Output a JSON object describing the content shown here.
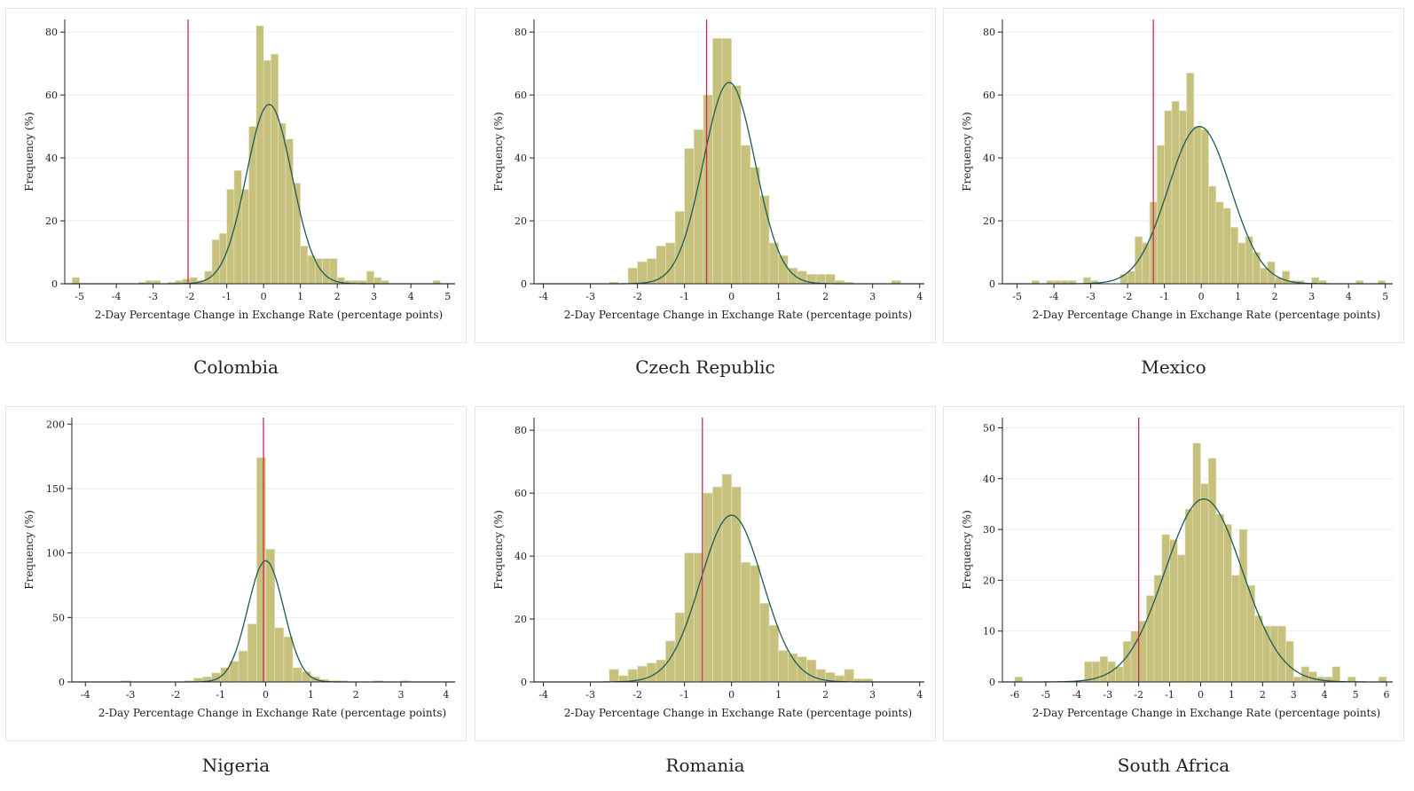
{
  "chart_data": [
    {
      "type": "bar",
      "title": "Colombia",
      "xlabel": "2-Day Percentage Change in Exchange Rate (percentage points)",
      "ylabel": "Frequency (%)",
      "xlim": [
        -5.4,
        5.2
      ],
      "ylim": [
        0,
        84
      ],
      "xticks": [
        -5,
        -4,
        -3,
        -2,
        -1,
        0,
        1,
        2,
        3,
        4,
        5
      ],
      "yticks": [
        0,
        20,
        40,
        60,
        80
      ],
      "grid": true,
      "bin_width": 0.2,
      "bins": [
        [
          -5.1,
          2
        ],
        [
          -3.3,
          0.5
        ],
        [
          -3.1,
          1
        ],
        [
          -2.9,
          1
        ],
        [
          -2.5,
          0.5
        ],
        [
          -2.3,
          1
        ],
        [
          -2.1,
          1.5
        ],
        [
          -1.9,
          2
        ],
        [
          -1.7,
          1
        ],
        [
          -1.5,
          4
        ],
        [
          -1.3,
          14
        ],
        [
          -1.1,
          16
        ],
        [
          -0.9,
          30
        ],
        [
          -0.7,
          36
        ],
        [
          -0.5,
          30
        ],
        [
          -0.3,
          50
        ],
        [
          -0.1,
          82
        ],
        [
          0.1,
          71
        ],
        [
          0.3,
          73
        ],
        [
          0.5,
          51
        ],
        [
          0.7,
          46
        ],
        [
          0.9,
          32
        ],
        [
          1.1,
          12
        ],
        [
          1.3,
          9
        ],
        [
          1.5,
          8
        ],
        [
          1.7,
          8
        ],
        [
          1.9,
          8
        ],
        [
          2.1,
          2
        ],
        [
          2.3,
          1
        ],
        [
          2.5,
          1
        ],
        [
          2.7,
          1
        ],
        [
          2.9,
          4
        ],
        [
          3.1,
          2
        ],
        [
          3.3,
          1
        ],
        [
          4.7,
          1
        ]
      ],
      "normal_curve": {
        "mean": 0.15,
        "peak": 57,
        "sd": 0.62
      },
      "vline_x": -2.05,
      "colors": {
        "bar": "#c6c17c",
        "curve": "#1f5a5a",
        "vline": "#d42a52"
      }
    },
    {
      "type": "bar",
      "title": "Czech Republic",
      "xlabel": "2-Day Percentage Change in Exchange Rate (percentage points)",
      "ylabel": "Frequency (%)",
      "xlim": [
        -4.2,
        4.1
      ],
      "ylim": [
        0,
        84
      ],
      "xticks": [
        -4,
        -3,
        -2,
        -1,
        0,
        1,
        2,
        3,
        4
      ],
      "yticks": [
        0,
        20,
        40,
        60,
        80
      ],
      "grid": true,
      "bin_width": 0.2,
      "bins": [
        [
          -2.5,
          0.5
        ],
        [
          -2.1,
          5
        ],
        [
          -1.9,
          7
        ],
        [
          -1.7,
          8
        ],
        [
          -1.5,
          12
        ],
        [
          -1.3,
          13
        ],
        [
          -1.1,
          23
        ],
        [
          -0.9,
          43
        ],
        [
          -0.7,
          49
        ],
        [
          -0.5,
          60
        ],
        [
          -0.3,
          78
        ],
        [
          -0.1,
          78
        ],
        [
          0.1,
          63
        ],
        [
          0.3,
          44
        ],
        [
          0.5,
          37
        ],
        [
          0.7,
          28
        ],
        [
          0.9,
          13
        ],
        [
          1.1,
          9
        ],
        [
          1.3,
          5
        ],
        [
          1.5,
          4
        ],
        [
          1.7,
          3
        ],
        [
          1.9,
          3
        ],
        [
          2.1,
          3
        ],
        [
          2.3,
          1
        ],
        [
          2.5,
          0.5
        ],
        [
          3.5,
          1
        ]
      ],
      "normal_curve": {
        "mean": -0.05,
        "peak": 64,
        "sd": 0.55
      },
      "vline_x": -0.53,
      "colors": {
        "bar": "#c6c17c",
        "curve": "#1f5a5a",
        "vline": "#d42a52"
      }
    },
    {
      "type": "bar",
      "title": "Mexico",
      "xlabel": "2-Day Percentage Change in Exchange Rate (percentage points)",
      "ylabel": "Frequency (%)",
      "xlim": [
        -5.4,
        5.2
      ],
      "ylim": [
        0,
        84
      ],
      "xticks": [
        -5,
        -4,
        -3,
        -2,
        -1,
        0,
        1,
        2,
        3,
        4,
        5
      ],
      "yticks": [
        0,
        20,
        40,
        60,
        80
      ],
      "grid": true,
      "bin_width": 0.2,
      "bins": [
        [
          -4.5,
          1
        ],
        [
          -4.1,
          1
        ],
        [
          -3.9,
          1
        ],
        [
          -3.7,
          1
        ],
        [
          -3.5,
          1
        ],
        [
          -3.1,
          2
        ],
        [
          -2.9,
          1
        ],
        [
          -2.1,
          3
        ],
        [
          -1.9,
          4
        ],
        [
          -1.7,
          15
        ],
        [
          -1.5,
          13
        ],
        [
          -1.3,
          26
        ],
        [
          -1.1,
          44
        ],
        [
          -0.9,
          55
        ],
        [
          -0.7,
          58
        ],
        [
          -0.5,
          55
        ],
        [
          -0.3,
          67
        ],
        [
          -0.1,
          50
        ],
        [
          0.1,
          49
        ],
        [
          0.3,
          31
        ],
        [
          0.5,
          26
        ],
        [
          0.7,
          24
        ],
        [
          0.9,
          18
        ],
        [
          1.1,
          13
        ],
        [
          1.3,
          15
        ],
        [
          1.5,
          10
        ],
        [
          1.7,
          5
        ],
        [
          1.9,
          7
        ],
        [
          2.1,
          2
        ],
        [
          2.3,
          4
        ],
        [
          2.5,
          1
        ],
        [
          2.7,
          1
        ],
        [
          3.1,
          2
        ],
        [
          3.3,
          1
        ],
        [
          4.3,
          1
        ],
        [
          4.9,
          1
        ]
      ],
      "normal_curve": {
        "mean": -0.05,
        "peak": 50,
        "sd": 0.85
      },
      "vline_x": -1.3,
      "colors": {
        "bar": "#c6c17c",
        "curve": "#1f5a5a",
        "vline": "#d42a52"
      }
    },
    {
      "type": "bar",
      "title": "Nigeria",
      "xlabel": "2-Day Percentage Change in Exchange Rate (percentage points)",
      "ylabel": "Frequency (%)",
      "xlim": [
        -4.3,
        4.2
      ],
      "ylim": [
        0,
        205
      ],
      "xticks": [
        -4,
        -3,
        -2,
        -1,
        0,
        1,
        2,
        3,
        4
      ],
      "yticks": [
        0,
        50,
        100,
        150,
        200
      ],
      "grid": true,
      "bin_width": 0.2,
      "bins": [
        [
          -3.1,
          1
        ],
        [
          -1.7,
          1
        ],
        [
          -1.5,
          3
        ],
        [
          -1.3,
          4
        ],
        [
          -1.1,
          7
        ],
        [
          -0.9,
          11
        ],
        [
          -0.7,
          16
        ],
        [
          -0.5,
          24
        ],
        [
          -0.3,
          45
        ],
        [
          -0.1,
          174
        ],
        [
          0.1,
          103
        ],
        [
          0.3,
          42
        ],
        [
          0.5,
          35
        ],
        [
          0.7,
          11
        ],
        [
          0.9,
          8
        ],
        [
          1.1,
          4
        ],
        [
          1.3,
          2
        ],
        [
          1.5,
          1
        ],
        [
          1.7,
          1
        ],
        [
          2.5,
          1
        ],
        [
          3.1,
          1
        ]
      ],
      "normal_curve": {
        "mean": 0.0,
        "peak": 94,
        "sd": 0.4
      },
      "vline_x": -0.05,
      "colors": {
        "bar": "#c6c17c",
        "curve": "#1f5a5a",
        "vline": "#d42a52"
      }
    },
    {
      "type": "bar",
      "title": "Romania",
      "xlabel": "2-Day Percentage Change in Exchange Rate (percentage points)",
      "ylabel": "Frequency (%)",
      "xlim": [
        -4.2,
        4.1
      ],
      "ylim": [
        0,
        84
      ],
      "xticks": [
        -4,
        -3,
        -2,
        -1,
        0,
        1,
        2,
        3,
        4
      ],
      "yticks": [
        0,
        20,
        40,
        60,
        80
      ],
      "grid": true,
      "bin_width": 0.2,
      "bins": [
        [
          -2.5,
          4
        ],
        [
          -2.3,
          2
        ],
        [
          -2.1,
          4
        ],
        [
          -1.9,
          5
        ],
        [
          -1.7,
          6
        ],
        [
          -1.5,
          7
        ],
        [
          -1.3,
          13
        ],
        [
          -1.1,
          22
        ],
        [
          -0.9,
          41
        ],
        [
          -0.7,
          41
        ],
        [
          -0.5,
          60
        ],
        [
          -0.3,
          62
        ],
        [
          -0.1,
          66
        ],
        [
          0.1,
          62
        ],
        [
          0.3,
          38
        ],
        [
          0.5,
          37
        ],
        [
          0.7,
          25
        ],
        [
          0.9,
          18
        ],
        [
          1.1,
          10
        ],
        [
          1.3,
          9
        ],
        [
          1.5,
          8
        ],
        [
          1.7,
          7
        ],
        [
          1.9,
          4
        ],
        [
          2.1,
          3
        ],
        [
          2.3,
          2
        ],
        [
          2.5,
          4
        ],
        [
          2.7,
          1
        ],
        [
          2.9,
          1
        ]
      ],
      "normal_curve": {
        "mean": 0.0,
        "peak": 53,
        "sd": 0.66
      },
      "vline_x": -0.62,
      "colors": {
        "bar": "#c6c17c",
        "curve": "#1f5a5a",
        "vline": "#d42a52"
      }
    },
    {
      "type": "bar",
      "title": "South Africa",
      "xlabel": "2-Day Percentage Change in Exchange Rate (percentage points)",
      "ylabel": "Frequency (%)",
      "xlim": [
        -6.4,
        6.2
      ],
      "ylim": [
        0,
        52
      ],
      "xticks": [
        -6,
        -5,
        -4,
        -3,
        -2,
        -1,
        0,
        1,
        2,
        3,
        4,
        5,
        6
      ],
      "yticks": [
        0,
        10,
        20,
        30,
        40,
        50
      ],
      "grid": true,
      "bin_width": 0.25,
      "bins": [
        [
          -5.875,
          1
        ],
        [
          -3.625,
          4
        ],
        [
          -3.375,
          4
        ],
        [
          -3.125,
          5
        ],
        [
          -2.875,
          4
        ],
        [
          -2.625,
          3
        ],
        [
          -2.375,
          8
        ],
        [
          -2.125,
          10
        ],
        [
          -1.875,
          12
        ],
        [
          -1.625,
          17
        ],
        [
          -1.375,
          21
        ],
        [
          -1.125,
          29
        ],
        [
          -0.875,
          28
        ],
        [
          -0.625,
          25
        ],
        [
          -0.375,
          34
        ],
        [
          -0.125,
          47
        ],
        [
          0.125,
          39
        ],
        [
          0.375,
          44
        ],
        [
          0.625,
          33
        ],
        [
          0.875,
          31
        ],
        [
          1.125,
          21
        ],
        [
          1.375,
          30
        ],
        [
          1.625,
          19
        ],
        [
          1.875,
          13
        ],
        [
          2.125,
          11
        ],
        [
          2.375,
          11
        ],
        [
          2.625,
          11
        ],
        [
          2.875,
          8
        ],
        [
          3.125,
          1
        ],
        [
          3.375,
          3
        ],
        [
          3.625,
          2
        ],
        [
          3.875,
          1
        ],
        [
          4.125,
          1
        ],
        [
          4.375,
          3
        ],
        [
          4.875,
          1
        ],
        [
          5.875,
          1
        ]
      ],
      "normal_curve": {
        "mean": 0.1,
        "peak": 36,
        "sd": 1.25
      },
      "vline_x": -2.0,
      "colors": {
        "bar": "#c6c17c",
        "curve": "#1f5a5a",
        "vline": "#d42a52"
      }
    }
  ]
}
